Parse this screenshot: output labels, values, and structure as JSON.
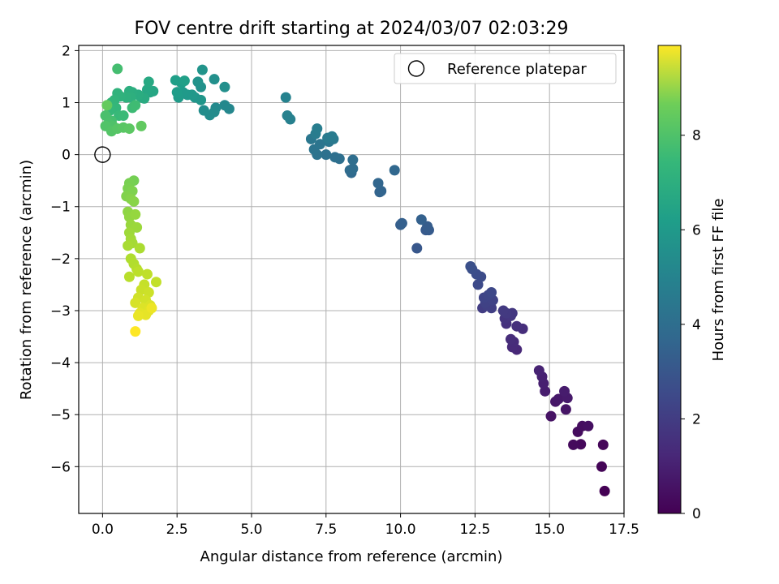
{
  "chart_data": {
    "type": "scatter",
    "title": "FOV centre drift starting at 2024/03/07 02:03:29",
    "xlabel": "Angular distance from reference (arcmin)",
    "ylabel": "Rotation from reference (arcmin)",
    "xlim": [
      -0.8,
      17.5
    ],
    "ylim": [
      -6.9,
      2.1
    ],
    "xticks": [
      0.0,
      2.5,
      5.0,
      7.5,
      10.0,
      12.5,
      15.0,
      17.5
    ],
    "xtick_labels": [
      "0.0",
      "2.5",
      "5.0",
      "7.5",
      "10.0",
      "12.5",
      "15.0",
      "17.5"
    ],
    "yticks": [
      2,
      1,
      0,
      -1,
      -2,
      -3,
      -4,
      -5,
      -6
    ],
    "ytick_labels": [
      "2",
      "1",
      "0",
      "−1",
      "−2",
      "−3",
      "−4",
      "−5",
      "−6"
    ],
    "grid": true,
    "colorbar": {
      "label": "Hours from first FF file",
      "range": [
        0,
        9.9
      ],
      "ticks": [
        0,
        2,
        4,
        6,
        8
      ],
      "tick_labels": [
        "0",
        "2",
        "4",
        "6",
        "8"
      ],
      "colormap": "viridis"
    },
    "legend": {
      "placement": "top-right",
      "entries": [
        "Reference platepar"
      ]
    },
    "reference_point": {
      "x": 0.0,
      "y": 0.0,
      "label": "Reference platepar"
    },
    "series": [
      {
        "color_by": "hours",
        "points": [
          {
            "x": 16.85,
            "y": -6.47,
            "h": 0.0
          },
          {
            "x": 16.75,
            "y": -6.0,
            "h": 0.1
          },
          {
            "x": 16.8,
            "y": -5.58,
            "h": 0.15
          },
          {
            "x": 16.05,
            "y": -5.57,
            "h": 0.2
          },
          {
            "x": 15.8,
            "y": -5.58,
            "h": 0.25
          },
          {
            "x": 15.95,
            "y": -5.33,
            "h": 0.3
          },
          {
            "x": 16.1,
            "y": -5.22,
            "h": 0.35
          },
          {
            "x": 16.3,
            "y": -5.22,
            "h": 0.4
          },
          {
            "x": 15.05,
            "y": -5.03,
            "h": 0.5
          },
          {
            "x": 15.55,
            "y": -4.9,
            "h": 0.55
          },
          {
            "x": 15.2,
            "y": -4.75,
            "h": 0.6
          },
          {
            "x": 15.3,
            "y": -4.7,
            "h": 0.65
          },
          {
            "x": 15.6,
            "y": -4.68,
            "h": 0.7
          },
          {
            "x": 15.5,
            "y": -4.55,
            "h": 0.75
          },
          {
            "x": 14.85,
            "y": -4.55,
            "h": 0.8
          },
          {
            "x": 14.8,
            "y": -4.4,
            "h": 0.85
          },
          {
            "x": 14.75,
            "y": -4.27,
            "h": 0.9
          },
          {
            "x": 14.65,
            "y": -4.15,
            "h": 0.95
          },
          {
            "x": 13.9,
            "y": -3.75,
            "h": 1.1
          },
          {
            "x": 13.75,
            "y": -3.7,
            "h": 1.15
          },
          {
            "x": 13.8,
            "y": -3.6,
            "h": 1.2
          },
          {
            "x": 13.7,
            "y": -3.55,
            "h": 1.25
          },
          {
            "x": 14.1,
            "y": -3.35,
            "h": 1.3
          },
          {
            "x": 13.9,
            "y": -3.3,
            "h": 1.35
          },
          {
            "x": 13.55,
            "y": -3.25,
            "h": 1.4
          },
          {
            "x": 13.5,
            "y": -3.15,
            "h": 1.5
          },
          {
            "x": 13.7,
            "y": -3.1,
            "h": 1.55
          },
          {
            "x": 13.75,
            "y": -3.05,
            "h": 1.6
          },
          {
            "x": 13.55,
            "y": -3.05,
            "h": 1.65
          },
          {
            "x": 13.45,
            "y": -3.0,
            "h": 1.7
          },
          {
            "x": 12.75,
            "y": -2.95,
            "h": 1.8
          },
          {
            "x": 13.05,
            "y": -2.95,
            "h": 1.85
          },
          {
            "x": 12.9,
            "y": -2.9,
            "h": 1.9
          },
          {
            "x": 12.85,
            "y": -2.85,
            "h": 1.95
          },
          {
            "x": 13.1,
            "y": -2.8,
            "h": 2.0
          },
          {
            "x": 12.8,
            "y": -2.75,
            "h": 2.05
          },
          {
            "x": 12.95,
            "y": -2.7,
            "h": 2.1
          },
          {
            "x": 13.05,
            "y": -2.65,
            "h": 2.15
          },
          {
            "x": 12.6,
            "y": -2.5,
            "h": 2.25
          },
          {
            "x": 12.7,
            "y": -2.35,
            "h": 2.3
          },
          {
            "x": 12.55,
            "y": -2.3,
            "h": 2.35
          },
          {
            "x": 12.4,
            "y": -2.2,
            "h": 2.4
          },
          {
            "x": 12.35,
            "y": -2.15,
            "h": 2.45
          },
          {
            "x": 10.55,
            "y": -1.8,
            "h": 2.7
          },
          {
            "x": 10.85,
            "y": -1.45,
            "h": 2.8
          },
          {
            "x": 10.95,
            "y": -1.45,
            "h": 2.85
          },
          {
            "x": 10.9,
            "y": -1.38,
            "h": 2.9
          },
          {
            "x": 10.0,
            "y": -1.35,
            "h": 2.95
          },
          {
            "x": 10.05,
            "y": -1.32,
            "h": 3.0
          },
          {
            "x": 10.7,
            "y": -1.25,
            "h": 3.05
          },
          {
            "x": 9.3,
            "y": -0.72,
            "h": 3.15
          },
          {
            "x": 9.35,
            "y": -0.7,
            "h": 3.2
          },
          {
            "x": 9.25,
            "y": -0.55,
            "h": 3.25
          },
          {
            "x": 9.8,
            "y": -0.3,
            "h": 3.3
          },
          {
            "x": 8.35,
            "y": -0.35,
            "h": 3.4
          },
          {
            "x": 8.3,
            "y": -0.3,
            "h": 3.45
          },
          {
            "x": 8.4,
            "y": -0.27,
            "h": 3.5
          },
          {
            "x": 8.4,
            "y": -0.1,
            "h": 3.55
          },
          {
            "x": 7.95,
            "y": -0.08,
            "h": 3.6
          },
          {
            "x": 7.8,
            "y": -0.05,
            "h": 3.65
          },
          {
            "x": 7.5,
            "y": 0.0,
            "h": 3.7
          },
          {
            "x": 7.2,
            "y": 0.0,
            "h": 3.75
          },
          {
            "x": 7.1,
            "y": 0.1,
            "h": 3.8
          },
          {
            "x": 7.3,
            "y": 0.2,
            "h": 3.85
          },
          {
            "x": 7.6,
            "y": 0.25,
            "h": 3.9
          },
          {
            "x": 7.0,
            "y": 0.3,
            "h": 3.95
          },
          {
            "x": 7.75,
            "y": 0.3,
            "h": 4.0
          },
          {
            "x": 7.55,
            "y": 0.32,
            "h": 4.05
          },
          {
            "x": 7.7,
            "y": 0.35,
            "h": 4.1
          },
          {
            "x": 7.15,
            "y": 0.4,
            "h": 4.15
          },
          {
            "x": 7.2,
            "y": 0.5,
            "h": 4.2
          },
          {
            "x": 6.3,
            "y": 0.68,
            "h": 4.3
          },
          {
            "x": 6.2,
            "y": 0.75,
            "h": 4.35
          },
          {
            "x": 6.15,
            "y": 1.1,
            "h": 4.4
          },
          {
            "x": 4.25,
            "y": 0.88,
            "h": 4.6
          },
          {
            "x": 4.1,
            "y": 0.95,
            "h": 4.65
          },
          {
            "x": 3.8,
            "y": 0.9,
            "h": 4.7
          },
          {
            "x": 3.75,
            "y": 0.82,
            "h": 4.75
          },
          {
            "x": 3.6,
            "y": 0.76,
            "h": 4.8
          },
          {
            "x": 3.4,
            "y": 0.85,
            "h": 4.85
          },
          {
            "x": 4.1,
            "y": 1.3,
            "h": 4.9
          },
          {
            "x": 3.75,
            "y": 1.45,
            "h": 4.95
          },
          {
            "x": 3.3,
            "y": 1.3,
            "h": 5.0
          },
          {
            "x": 3.2,
            "y": 1.4,
            "h": 5.05
          },
          {
            "x": 3.35,
            "y": 1.63,
            "h": 5.1
          },
          {
            "x": 3.1,
            "y": 1.1,
            "h": 5.15
          },
          {
            "x": 3.3,
            "y": 1.05,
            "h": 5.2
          },
          {
            "x": 3.0,
            "y": 1.15,
            "h": 5.25
          },
          {
            "x": 2.85,
            "y": 1.15,
            "h": 5.3
          },
          {
            "x": 2.7,
            "y": 1.2,
            "h": 5.35
          },
          {
            "x": 2.55,
            "y": 1.1,
            "h": 5.4
          },
          {
            "x": 2.5,
            "y": 1.2,
            "h": 5.45
          },
          {
            "x": 2.65,
            "y": 1.38,
            "h": 5.5
          },
          {
            "x": 2.45,
            "y": 1.43,
            "h": 5.55
          },
          {
            "x": 2.75,
            "y": 1.42,
            "h": 5.6
          },
          {
            "x": 1.6,
            "y": 1.2,
            "h": 5.8
          },
          {
            "x": 1.7,
            "y": 1.22,
            "h": 5.85
          },
          {
            "x": 1.5,
            "y": 1.25,
            "h": 5.9
          },
          {
            "x": 1.55,
            "y": 1.4,
            "h": 5.95
          },
          {
            "x": 1.3,
            "y": 1.1,
            "h": 6.0
          },
          {
            "x": 1.4,
            "y": 1.08,
            "h": 6.05
          },
          {
            "x": 1.2,
            "y": 1.15,
            "h": 6.1
          },
          {
            "x": 1.0,
            "y": 1.2,
            "h": 6.15
          },
          {
            "x": 0.9,
            "y": 1.22,
            "h": 6.2
          },
          {
            "x": 0.95,
            "y": 1.1,
            "h": 6.25
          },
          {
            "x": 0.8,
            "y": 1.1,
            "h": 6.3
          },
          {
            "x": 0.6,
            "y": 1.12,
            "h": 6.35
          },
          {
            "x": 0.5,
            "y": 1.18,
            "h": 6.4
          },
          {
            "x": 0.4,
            "y": 1.05,
            "h": 6.45
          },
          {
            "x": 0.3,
            "y": 1.0,
            "h": 6.5
          },
          {
            "x": 0.45,
            "y": 0.9,
            "h": 6.55
          },
          {
            "x": 0.25,
            "y": 0.85,
            "h": 6.6
          },
          {
            "x": 0.55,
            "y": 0.75,
            "h": 6.65
          },
          {
            "x": 0.7,
            "y": 0.75,
            "h": 6.7
          },
          {
            "x": 1.0,
            "y": 0.9,
            "h": 6.75
          },
          {
            "x": 1.1,
            "y": 0.95,
            "h": 6.8
          },
          {
            "x": 0.5,
            "y": 1.65,
            "h": 6.9
          },
          {
            "x": 0.3,
            "y": 0.65,
            "h": 6.95
          },
          {
            "x": 0.1,
            "y": 0.75,
            "h": 7.0
          },
          {
            "x": 0.2,
            "y": 0.6,
            "h": 7.05
          },
          {
            "x": 0.35,
            "y": 0.55,
            "h": 7.1
          },
          {
            "x": 0.1,
            "y": 0.55,
            "h": 7.15
          },
          {
            "x": 0.3,
            "y": 0.45,
            "h": 7.2
          },
          {
            "x": 0.5,
            "y": 0.5,
            "h": 7.25
          },
          {
            "x": 0.7,
            "y": 0.52,
            "h": 7.3
          },
          {
            "x": 0.9,
            "y": 0.5,
            "h": 7.35
          },
          {
            "x": 1.3,
            "y": 0.55,
            "h": 7.45
          },
          {
            "x": 0.15,
            "y": 0.95,
            "h": 7.5
          },
          {
            "x": 1.05,
            "y": -0.5,
            "h": 7.8
          },
          {
            "x": 0.9,
            "y": -0.55,
            "h": 7.85
          },
          {
            "x": 0.85,
            "y": -0.65,
            "h": 7.9
          },
          {
            "x": 1.0,
            "y": -0.7,
            "h": 7.95
          },
          {
            "x": 0.8,
            "y": -0.8,
            "h": 8.0
          },
          {
            "x": 0.95,
            "y": -0.85,
            "h": 8.05
          },
          {
            "x": 1.05,
            "y": -0.9,
            "h": 8.1
          },
          {
            "x": 0.85,
            "y": -1.1,
            "h": 8.2
          },
          {
            "x": 0.9,
            "y": -1.2,
            "h": 8.25
          },
          {
            "x": 1.1,
            "y": -1.15,
            "h": 8.3
          },
          {
            "x": 0.95,
            "y": -1.35,
            "h": 8.35
          },
          {
            "x": 1.15,
            "y": -1.4,
            "h": 8.4
          },
          {
            "x": 0.9,
            "y": -1.5,
            "h": 8.45
          },
          {
            "x": 0.95,
            "y": -1.62,
            "h": 8.5
          },
          {
            "x": 1.0,
            "y": -1.7,
            "h": 8.55
          },
          {
            "x": 0.85,
            "y": -1.75,
            "h": 8.6
          },
          {
            "x": 1.25,
            "y": -1.8,
            "h": 8.65
          },
          {
            "x": 0.95,
            "y": -2.0,
            "h": 8.7
          },
          {
            "x": 1.05,
            "y": -2.1,
            "h": 8.75
          },
          {
            "x": 1.15,
            "y": -2.2,
            "h": 8.8
          },
          {
            "x": 0.9,
            "y": -2.35,
            "h": 8.85
          },
          {
            "x": 1.2,
            "y": -2.25,
            "h": 8.9
          },
          {
            "x": 1.5,
            "y": -2.3,
            "h": 8.95
          },
          {
            "x": 1.8,
            "y": -2.45,
            "h": 9.0
          },
          {
            "x": 1.4,
            "y": -2.5,
            "h": 9.05
          },
          {
            "x": 1.3,
            "y": -2.6,
            "h": 9.1
          },
          {
            "x": 1.55,
            "y": -2.65,
            "h": 9.15
          },
          {
            "x": 1.2,
            "y": -2.75,
            "h": 9.2
          },
          {
            "x": 1.45,
            "y": -2.8,
            "h": 9.25
          },
          {
            "x": 1.1,
            "y": -2.85,
            "h": 9.3
          },
          {
            "x": 1.6,
            "y": -2.9,
            "h": 9.35
          },
          {
            "x": 1.35,
            "y": -2.95,
            "h": 9.4
          },
          {
            "x": 1.55,
            "y": -3.0,
            "h": 9.45
          },
          {
            "x": 1.25,
            "y": -3.05,
            "h": 9.5
          },
          {
            "x": 1.45,
            "y": -3.08,
            "h": 9.55
          },
          {
            "x": 1.2,
            "y": -3.1,
            "h": 9.6
          },
          {
            "x": 1.65,
            "y": -2.95,
            "h": 9.65
          },
          {
            "x": 1.1,
            "y": -3.4,
            "h": 9.9
          }
        ]
      }
    ]
  }
}
